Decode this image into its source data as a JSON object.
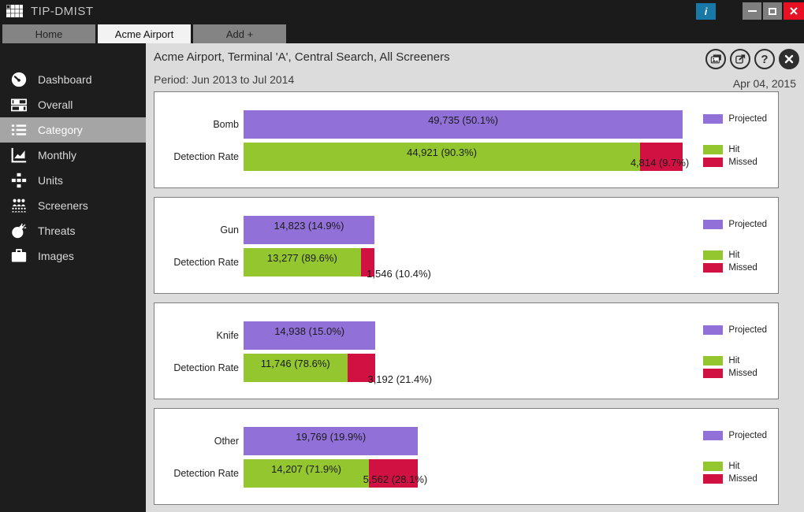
{
  "window": {
    "app_title": "TIP-DMIST",
    "info_glyph": "i"
  },
  "tabs": [
    {
      "label": "Home",
      "active": false
    },
    {
      "label": "Acme Airport",
      "active": true
    },
    {
      "label": "Add +",
      "active": false
    }
  ],
  "sidebar": {
    "items": [
      {
        "label": "Dashboard",
        "icon": "gauge-icon",
        "selected": false
      },
      {
        "label": "Overall",
        "icon": "sliders-icon",
        "selected": false
      },
      {
        "label": "Category",
        "icon": "list-icon",
        "selected": true
      },
      {
        "label": "Monthly",
        "icon": "line-chart-icon",
        "selected": false
      },
      {
        "label": "Units",
        "icon": "sitemap-icon",
        "selected": false
      },
      {
        "label": "Screeners",
        "icon": "people-icon",
        "selected": false
      },
      {
        "label": "Threats",
        "icon": "bomb-icon",
        "selected": false
      },
      {
        "label": "Images",
        "icon": "briefcase-icon",
        "selected": false
      }
    ]
  },
  "header": {
    "title": "Acme Airport, Terminal 'A', Central Search, All Screeners",
    "period": "Period: Jun 2013 to Jul 2014",
    "date": "Apr 04, 2015",
    "help_glyph": "?",
    "actions": [
      "images-icon",
      "export-icon",
      "help-icon",
      "close-icon"
    ]
  },
  "legend": {
    "projected": "Projected",
    "hit": "Hit",
    "missed": "Missed"
  },
  "colors": {
    "projected": "#9170d8",
    "hit": "#94c72f",
    "missed": "#d01142",
    "info_button": "#1878a8",
    "close_button": "#e81123"
  },
  "chart_data": {
    "type": "bar",
    "orientation": "horizontal",
    "axis_max": 60000,
    "grid": false,
    "legend_position": "right",
    "detection_row_label": "Detection Rate",
    "panels": [
      {
        "category": "Bomb",
        "projected": 49735,
        "projected_label": "49,735 (50.1%)",
        "hit": 44921,
        "hit_label": "44,921 (90.3%)",
        "missed": 4814,
        "missed_label": "4,814 (9.7%)"
      },
      {
        "category": "Gun",
        "projected": 14823,
        "projected_label": "14,823 (14.9%)",
        "hit": 13277,
        "hit_label": "13,277 (89.6%)",
        "missed": 1546,
        "missed_label": "1,546 (10.4%)"
      },
      {
        "category": "Knife",
        "projected": 14938,
        "projected_label": "14,938 (15.0%)",
        "hit": 11746,
        "hit_label": "11,746 (78.6%)",
        "missed": 3192,
        "missed_label": "3,192 (21.4%)"
      },
      {
        "category": "Other",
        "projected": 19769,
        "projected_label": "19,769 (19.9%)",
        "hit": 14207,
        "hit_label": "14,207 (71.9%)",
        "missed": 5562,
        "missed_label": "5,562 (28.1%)"
      }
    ]
  }
}
